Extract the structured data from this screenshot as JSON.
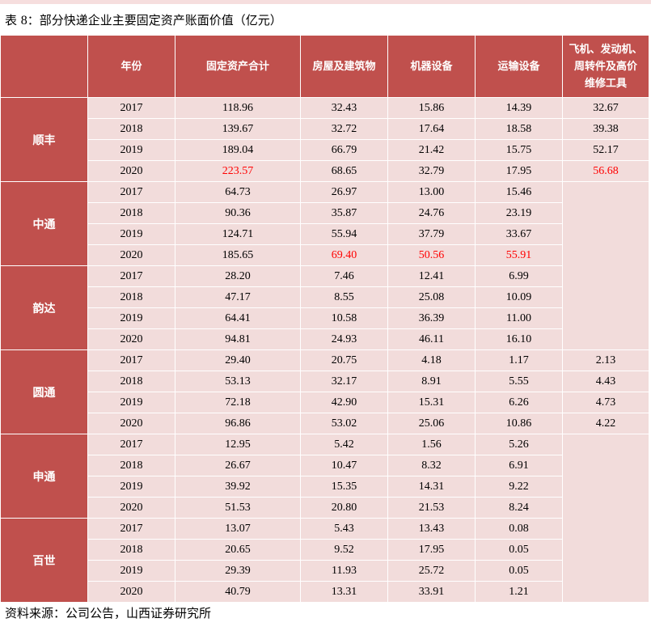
{
  "caption": {
    "prefix": "表",
    "number": "8",
    "title": "：部分快递企业主要固定资产账面价值（亿元）"
  },
  "header": {
    "year": "年份",
    "total": "固定资产合计",
    "building": "房屋及建筑物",
    "machine": "机器设备",
    "transport": "运输设备",
    "aircraft": [
      "飞机、发动机、",
      "周转件及高价",
      "维修工具"
    ]
  },
  "companies": [
    {
      "name": "顺丰",
      "rows": [
        {
          "year": "2017",
          "total": "118.96",
          "building": "32.43",
          "machine": "15.86",
          "transport": "14.39",
          "aircraft": "32.67"
        },
        {
          "year": "2018",
          "total": "139.67",
          "building": "32.72",
          "machine": "17.64",
          "transport": "18.58",
          "aircraft": "39.38"
        },
        {
          "year": "2019",
          "total": "189.04",
          "building": "66.79",
          "machine": "21.42",
          "transport": "15.75",
          "aircraft": "52.17"
        },
        {
          "year": "2020",
          "total": "223.57",
          "building": "68.65",
          "machine": "32.79",
          "transport": "17.95",
          "aircraft": "56.68"
        }
      ]
    },
    {
      "name": "中通",
      "rows": [
        {
          "year": "2017",
          "total": "64.73",
          "building": "26.97",
          "machine": "13.00",
          "transport": "15.46"
        },
        {
          "year": "2018",
          "total": "90.36",
          "building": "35.87",
          "machine": "24.76",
          "transport": "23.19"
        },
        {
          "year": "2019",
          "total": "124.71",
          "building": "55.94",
          "machine": "37.79",
          "transport": "33.67"
        },
        {
          "year": "2020",
          "total": "185.65",
          "building": "69.40",
          "machine": "50.56",
          "transport": "55.91"
        }
      ]
    },
    {
      "name": "韵达",
      "rows": [
        {
          "year": "2017",
          "total": "28.20",
          "building": "7.46",
          "machine": "12.41",
          "transport": "6.99"
        },
        {
          "year": "2018",
          "total": "47.17",
          "building": "8.55",
          "machine": "25.08",
          "transport": "10.09"
        },
        {
          "year": "2019",
          "total": "64.41",
          "building": "10.58",
          "machine": "36.39",
          "transport": "11.00"
        },
        {
          "year": "2020",
          "total": "94.81",
          "building": "24.93",
          "machine": "46.11",
          "transport": "16.10"
        }
      ]
    },
    {
      "name": "圆通",
      "rows": [
        {
          "year": "2017",
          "total": "29.40",
          "building": "20.75",
          "machine": "4.18",
          "transport": "1.17",
          "aircraft": "2.13"
        },
        {
          "year": "2018",
          "total": "53.13",
          "building": "32.17",
          "machine": "8.91",
          "transport": "5.55",
          "aircraft": "4.43"
        },
        {
          "year": "2019",
          "total": "72.18",
          "building": "42.90",
          "machine": "15.31",
          "transport": "6.26",
          "aircraft": "4.73"
        },
        {
          "year": "2020",
          "total": "96.86",
          "building": "53.02",
          "machine": "25.06",
          "transport": "10.86",
          "aircraft": "4.22"
        }
      ]
    },
    {
      "name": "申通",
      "rows": [
        {
          "year": "2017",
          "total": "12.95",
          "building": "5.42",
          "machine": "1.56",
          "transport": "5.26"
        },
        {
          "year": "2018",
          "total": "26.67",
          "building": "10.47",
          "machine": "8.32",
          "transport": "6.91"
        },
        {
          "year": "2019",
          "total": "39.92",
          "building": "15.35",
          "machine": "14.31",
          "transport": "9.22"
        },
        {
          "year": "2020",
          "total": "51.53",
          "building": "20.80",
          "machine": "21.53",
          "transport": "8.24"
        }
      ]
    },
    {
      "name": "百世",
      "rows": [
        {
          "year": "2017",
          "total": "13.07",
          "building": "5.43",
          "machine": "13.43",
          "transport": "0.08"
        },
        {
          "year": "2018",
          "total": "20.65",
          "building": "9.52",
          "machine": "17.95",
          "transport": "0.05"
        },
        {
          "year": "2019",
          "total": "29.39",
          "building": "11.93",
          "machine": "25.72",
          "transport": "0.05"
        },
        {
          "year": "2020",
          "total": "40.79",
          "building": "13.31",
          "machine": "33.91",
          "transport": "1.21"
        }
      ]
    }
  ],
  "highlight_color": "#ff0000",
  "highlighted_cells": [
    "0.3.total",
    "0.3.aircraft",
    "1.3.building",
    "1.3.machine",
    "1.3.transport"
  ],
  "source": "资料来源：公司公告，山西证券研究所"
}
